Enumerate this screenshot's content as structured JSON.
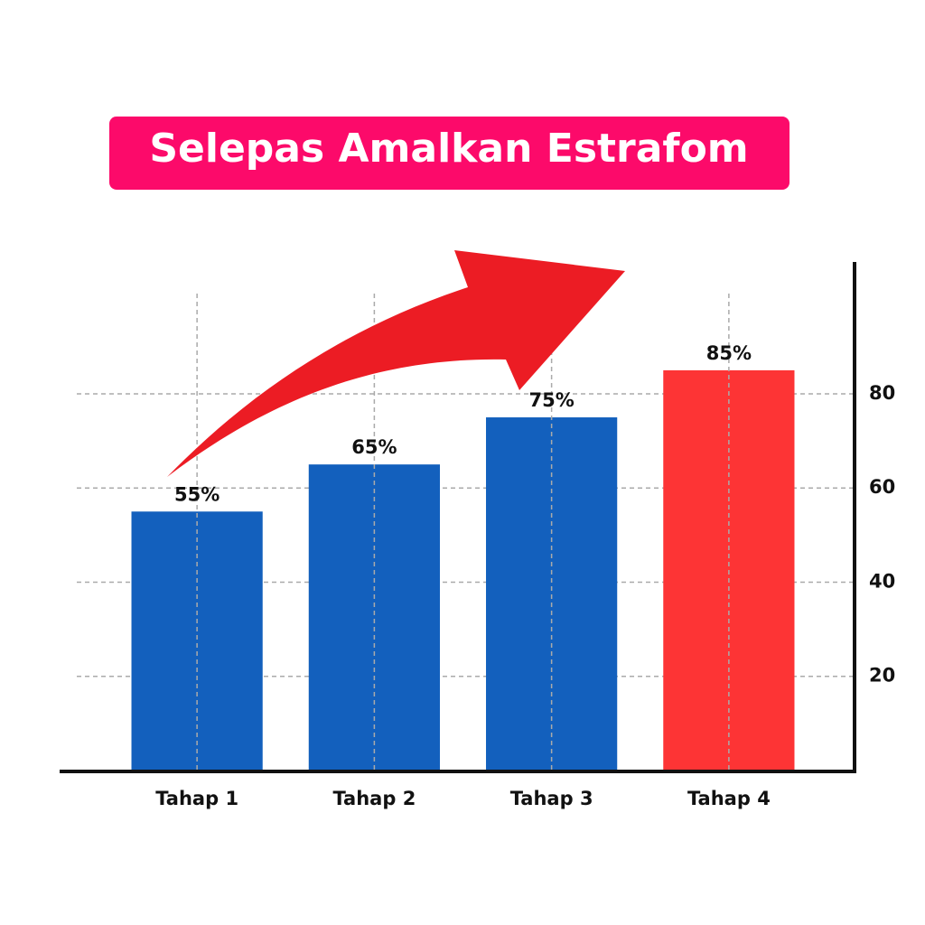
{
  "chart_data": {
    "type": "bar",
    "title": "Selepas Amalkan Estrafom",
    "categories": [
      "Tahap 1",
      "Tahap 2",
      "Tahap 3",
      "Tahap 4"
    ],
    "values": [
      55,
      65,
      75,
      85
    ],
    "value_labels": [
      "55%",
      "65%",
      "75%",
      "85%"
    ],
    "colors": [
      "#1360bd",
      "#1360bd",
      "#1360bd",
      "#fd3435"
    ],
    "ylim": [
      0,
      108
    ],
    "yticks": [
      20,
      40,
      60,
      80
    ],
    "grid": true,
    "y_axis_side": "right"
  }
}
